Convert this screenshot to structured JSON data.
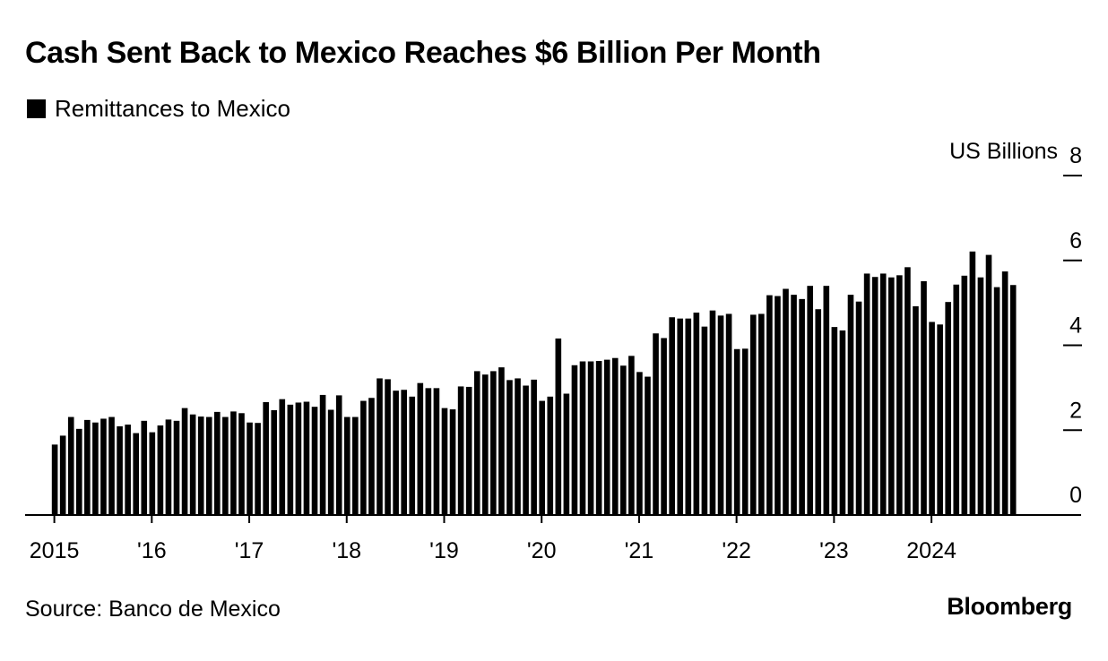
{
  "title": "Cash Sent Back to Mexico Reaches $6 Billion Per Month",
  "legend_label": "Remittances to Mexico",
  "source": "Source: Banco de Mexico",
  "brand": "Bloomberg",
  "colors": {
    "bar": "#000000",
    "background": "#ffffff",
    "axis": "#000000"
  },
  "chart_data": {
    "type": "bar",
    "title": "Cash Sent Back to Mexico Reaches $6 Billion Per Month",
    "ylabel": "US Billions",
    "ylim": [
      0,
      8
    ],
    "yticks": [
      0,
      2,
      4,
      6,
      8
    ],
    "y_axis_side": "right",
    "y_unit_label": "US Billions",
    "grid": false,
    "legend_position": "top-left",
    "x_tick_labels": [
      "2015",
      "'16",
      "'17",
      "'18",
      "'19",
      "'20",
      "'21",
      "'22",
      "'23",
      "2024"
    ],
    "start": "2015-01",
    "series": [
      {
        "name": "Remittances to Mexico",
        "values": [
          1.66,
          1.87,
          2.31,
          2.03,
          2.24,
          2.18,
          2.27,
          2.31,
          2.09,
          2.13,
          1.93,
          2.22,
          1.95,
          2.11,
          2.25,
          2.22,
          2.52,
          2.37,
          2.32,
          2.31,
          2.43,
          2.31,
          2.44,
          2.4,
          2.18,
          2.17,
          2.66,
          2.47,
          2.73,
          2.6,
          2.65,
          2.67,
          2.55,
          2.83,
          2.48,
          2.82,
          2.31,
          2.31,
          2.69,
          2.76,
          3.22,
          3.2,
          2.93,
          2.95,
          2.79,
          3.11,
          2.99,
          2.99,
          2.52,
          2.49,
          3.03,
          3.02,
          3.39,
          3.31,
          3.39,
          3.48,
          3.18,
          3.22,
          3.05,
          3.19,
          2.69,
          2.79,
          4.16,
          2.86,
          3.53,
          3.62,
          3.62,
          3.63,
          3.66,
          3.7,
          3.52,
          3.75,
          3.37,
          3.26,
          4.28,
          4.17,
          4.66,
          4.63,
          4.63,
          4.77,
          4.44,
          4.82,
          4.7,
          4.74,
          3.91,
          3.92,
          4.72,
          4.74,
          5.18,
          5.16,
          5.33,
          5.19,
          5.09,
          5.4,
          4.85,
          5.4,
          4.43,
          4.35,
          5.19,
          5.03,
          5.69,
          5.61,
          5.69,
          5.6,
          5.65,
          5.84,
          4.92,
          5.51,
          4.55,
          4.49,
          5.02,
          5.43,
          5.64,
          6.21,
          5.6,
          6.13,
          5.37,
          5.74,
          5.42
        ]
      }
    ]
  }
}
